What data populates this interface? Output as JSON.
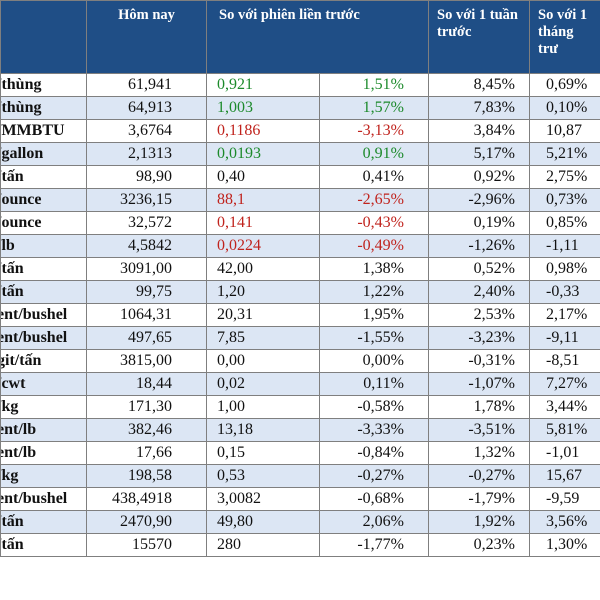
{
  "header": {
    "unit": "",
    "today": "Hôm nay",
    "prev_session": "So với phiên liền trước",
    "week_ago": "So với 1 tuần trước",
    "month_ago": "So với 1 tháng trư"
  },
  "rows": [
    {
      "unit": "/thùng",
      "today": "61,941",
      "change": "0,921",
      "pct": "1,51%",
      "week": "8,45%",
      "month": "0,69%",
      "tone": "pos"
    },
    {
      "unit": "/thùng",
      "today": "64,913",
      "change": "1,003",
      "pct": "1,57%",
      "week": "7,83%",
      "month": "0,10%",
      "tone": "pos"
    },
    {
      "unit": "/MMBTU",
      "today": "3,6764",
      "change": "0,1186",
      "pct": "-3,13%",
      "week": "3,84%",
      "month": "10,87",
      "tone": "neg"
    },
    {
      "unit": "/gallon",
      "today": "2,1313",
      "change": "0,0193",
      "pct": "0,91%",
      "week": "5,17%",
      "month": "5,21%",
      "tone": "pos"
    },
    {
      "unit": "/tấn",
      "today": "98,90",
      "change": "0,40",
      "pct": "0,41%",
      "week": "0,92%",
      "month": "2,75%",
      "tone": ""
    },
    {
      "unit": "/ounce",
      "today": "3236,15",
      "change": "88,1",
      "pct": "-2,65%",
      "week": "-2,96%",
      "month": "0,73%",
      "tone": "neg"
    },
    {
      "unit": "/ounce",
      "today": "32,572",
      "change": "0,141",
      "pct": "-0,43%",
      "week": "0,19%",
      "month": "0,85%",
      "tone": "neg"
    },
    {
      "unit": "/lb",
      "today": "4,5842",
      "change": "0,0224",
      "pct": "-0,49%",
      "week": "-1,26%",
      "month": "-1,11",
      "tone": "neg"
    },
    {
      "unit": "/tấn",
      "today": "3091,00",
      "change": "42,00",
      "pct": "1,38%",
      "week": "0,52%",
      "month": "0,98%",
      "tone": ""
    },
    {
      "unit": "/tấn",
      "today": "99,75",
      "change": "1,20",
      "pct": "1,22%",
      "week": "2,40%",
      "month": "-0,33",
      "tone": ""
    },
    {
      "unit": "ent/bushel",
      "today": "1064,31",
      "change": "20,31",
      "pct": "1,95%",
      "week": "2,53%",
      "month": "2,17%",
      "tone": ""
    },
    {
      "unit": "ent/bushel",
      "today": "497,65",
      "change": "7,85",
      "pct": "-1,55%",
      "week": "-3,23%",
      "month": "-9,11",
      "tone": ""
    },
    {
      "unit": "git/tấn",
      "today": "3815,00",
      "change": "0,00",
      "pct": "0,00%",
      "week": "-0,31%",
      "month": "-8,51",
      "tone": ""
    },
    {
      "unit": "/cwt",
      "today": "18,44",
      "change": "0,02",
      "pct": "0,11%",
      "week": "-1,07%",
      "month": "7,27%",
      "tone": ""
    },
    {
      "unit": "/kg",
      "today": "171,30",
      "change": "1,00",
      "pct": "-0,58%",
      "week": "1,78%",
      "month": "3,44%",
      "tone": ""
    },
    {
      "unit": "ent/lb",
      "today": "382,46",
      "change": "13,18",
      "pct": "-3,33%",
      "week": "-3,51%",
      "month": "5,81%",
      "tone": ""
    },
    {
      "unit": "ent/lb",
      "today": "17,66",
      "change": "0,15",
      "pct": "-0,84%",
      "week": "1,32%",
      "month": "-1,01",
      "tone": ""
    },
    {
      "unit": "/kg",
      "today": "198,58",
      "change": "0,53",
      "pct": "-0,27%",
      "week": "-0,27%",
      "month": "15,67",
      "tone": ""
    },
    {
      "unit": "ent/bushel",
      "today": "438,4918",
      "change": "3,0082",
      "pct": "-0,68%",
      "week": "-1,79%",
      "month": "-9,59",
      "tone": ""
    },
    {
      "unit": "/tấn",
      "today": "2470,90",
      "change": "49,80",
      "pct": "2,06%",
      "week": "1,92%",
      "month": "3,56%",
      "tone": ""
    },
    {
      "unit": "/tấn",
      "today": "15570",
      "change": "280",
      "pct": "-1,77%",
      "week": "0,23%",
      "month": "1,30%",
      "tone": ""
    }
  ]
}
